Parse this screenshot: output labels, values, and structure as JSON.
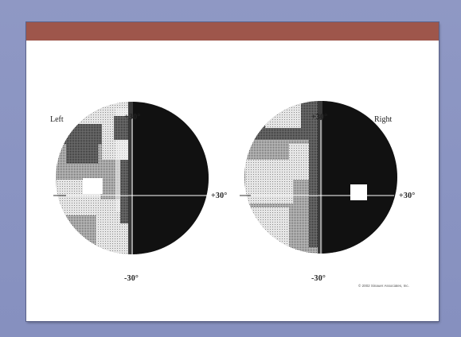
{
  "slide": {
    "title": ""
  },
  "figure": {
    "left_eye": {
      "label": "Left",
      "top_label": "+30°",
      "bottom_label": "-30°"
    },
    "right_eye": {
      "label": "Right",
      "top_label": "+30°",
      "bottom_label": "-30°",
      "side_label": "+30°"
    },
    "center_label": "+30°",
    "copyright": "© 2002 Sinauer Associates, Inc."
  },
  "colors": {
    "background": "#8a94c2",
    "title_bar": "#9e564b",
    "blind_region": "#111111"
  }
}
